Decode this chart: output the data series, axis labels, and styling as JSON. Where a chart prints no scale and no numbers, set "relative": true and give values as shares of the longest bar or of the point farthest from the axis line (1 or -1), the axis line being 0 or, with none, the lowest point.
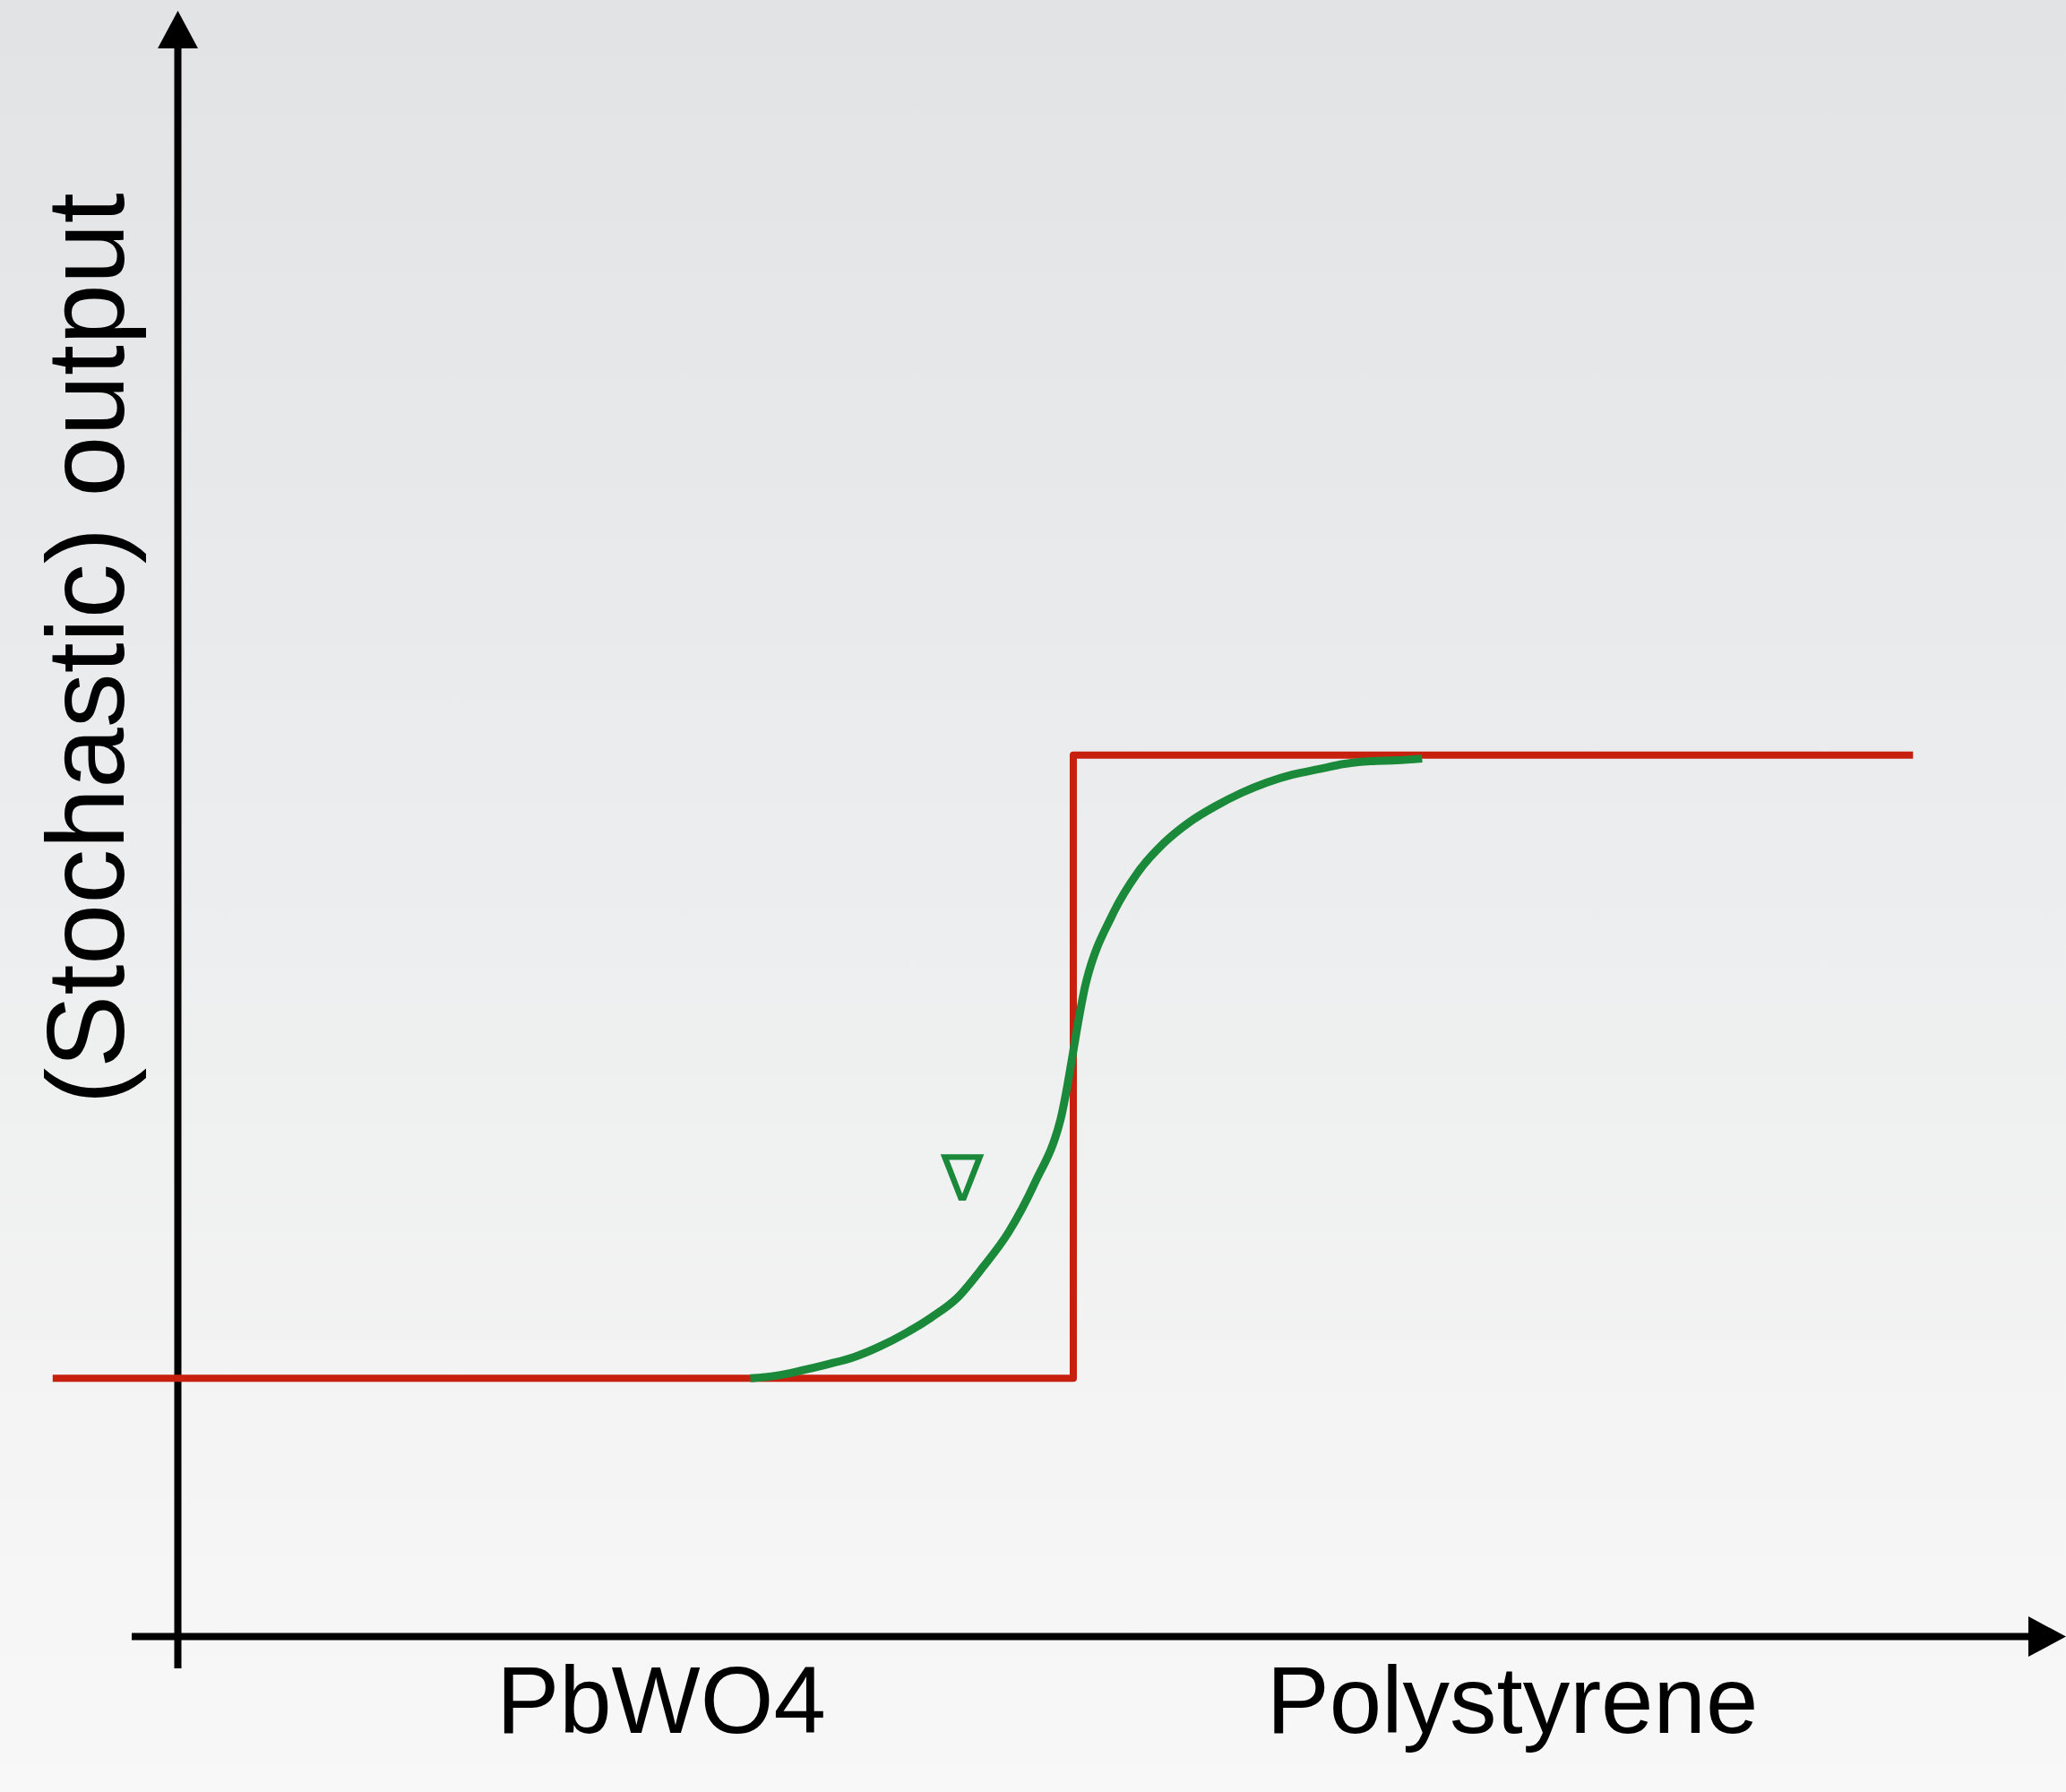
{
  "chart_data": {
    "type": "line",
    "relative": true,
    "ylabel": "(Stochastic) output",
    "annotations": [
      "PbWO4",
      "Polystyrene",
      "∇"
    ],
    "categories": [
      null,
      null,
      null,
      null,
      null,
      null,
      null,
      null,
      null,
      null,
      null,
      null,
      null,
      null,
      null,
      null,
      null,
      null,
      null,
      null,
      null,
      null,
      null,
      null,
      null,
      null,
      null,
      null,
      null,
      null,
      null,
      null,
      null,
      null,
      null,
      null,
      null,
      null,
      null,
      null,
      null,
      null,
      null,
      null,
      null,
      null,
      null,
      null,
      null,
      null,
      null,
      null,
      null,
      null,
      null,
      null,
      null,
      null,
      null,
      null,
      null,
      null,
      null,
      null,
      null,
      null,
      null,
      null,
      null,
      null,
      null,
      null,
      null
    ],
    "series": [
      {
        "type": "step",
        "color": "#c8200e",
        "values": [
          0.293,
          0.293,
          0.293,
          0.293,
          0.293,
          0.293,
          0.293,
          0.293,
          0.293,
          0.293,
          0.293,
          0.293,
          0.293,
          0.293,
          0.293,
          0.293,
          0.293,
          0.293,
          0.293,
          0.293,
          0.293,
          0.293,
          0.293,
          0.293,
          0.293,
          0.293,
          0.293,
          0.293,
          0.293,
          0.293,
          0.293,
          0.293,
          0.293,
          0.293,
          0.293,
          0.293,
          0.293,
          0.293,
          0.293,
          0.293,
          1,
          1,
          1,
          1,
          1,
          1,
          1,
          1,
          1,
          1,
          1,
          1,
          1,
          1,
          1,
          1,
          1,
          1,
          1,
          1,
          1,
          1,
          1,
          1,
          1,
          1,
          1,
          1,
          1,
          1,
          1,
          1,
          1
        ]
      },
      {
        "type": "line",
        "color": "#1a8a3a",
        "values": [
          null,
          null,
          null,
          null,
          null,
          null,
          null,
          null,
          null,
          null,
          null,
          null,
          null,
          null,
          null,
          null,
          null,
          null,
          null,
          null,
          null,
          null,
          null,
          null,
          null,
          null,
          null,
          0.293,
          0.296,
          0.302,
          0.309,
          0.317,
          0.329,
          0.344,
          0.362,
          0.384,
          0.419,
          0.459,
          0.514,
          0.586,
          0.743,
          0.818,
          0.867,
          0.9,
          0.924,
          0.942,
          0.957,
          0.969,
          0.978,
          0.984,
          0.99,
          0.993,
          0.994,
          0.996,
          null,
          null,
          null,
          null,
          null,
          null,
          null,
          null,
          null,
          null,
          null,
          null,
          null,
          null,
          null,
          null,
          null,
          null,
          null
        ]
      }
    ]
  }
}
